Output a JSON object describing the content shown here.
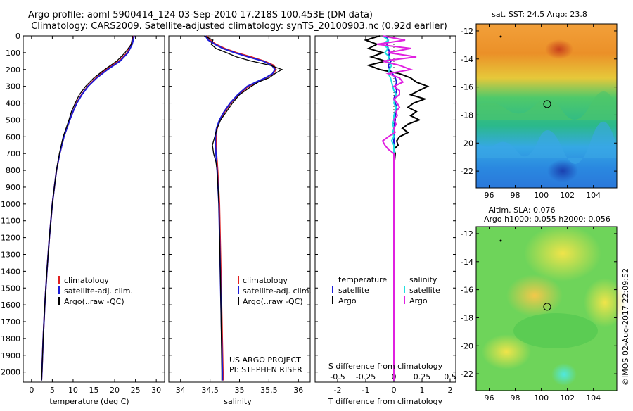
{
  "header": {
    "title_line1": "Argo profile: aoml 5900414_124 03-Sep-2010 17.218S 100.453E (DM data)",
    "title_line2": "Climatology: CARS2009. Satellite-adjusted climatology: synTS_20100903.nc (0.92d earlier)"
  },
  "colors": {
    "climatology": "#e02020",
    "satellite": "#1c1cd8",
    "argo": "#000000",
    "sal_satellite": "#1fe0e0",
    "sal_argo": "#e020e0"
  },
  "depth_ticks": [
    "0",
    "100",
    "200",
    "300",
    "400",
    "500",
    "600",
    "700",
    "800",
    "900",
    "1000",
    "1100",
    "1200",
    "1300",
    "1400",
    "1500",
    "1600",
    "1700",
    "1800",
    "1900",
    "2000"
  ],
  "legend_profiles": {
    "climatology": "climatology",
    "satellite": "satellite-adj. clim.",
    "argo": "Argo(..raw -QC)"
  },
  "chart_data": [
    {
      "type": "line",
      "id": "temperature",
      "xlabel": "temperature (deg C)",
      "xlim": [
        -2,
        32
      ],
      "ylim": [
        2060,
        0
      ],
      "xticks": [
        "0",
        "5",
        "10",
        "15",
        "20",
        "25",
        "30"
      ],
      "depth": [
        0,
        50,
        100,
        150,
        200,
        250,
        300,
        350,
        400,
        450,
        500,
        600,
        700,
        800,
        900,
        1000,
        1200,
        1400,
        1600,
        1800,
        2000,
        2050
      ],
      "series": [
        {
          "name": "climatology",
          "values": [
            24.5,
            24.0,
            23.0,
            21.0,
            18.0,
            15.5,
            13.5,
            12.0,
            10.8,
            10.0,
            9.2,
            7.8,
            6.8,
            6.0,
            5.5,
            5.0,
            4.3,
            3.7,
            3.2,
            2.8,
            2.5,
            2.4
          ]
        },
        {
          "name": "satellite-adj. clim.",
          "values": [
            24.7,
            24.2,
            23.2,
            21.3,
            18.3,
            15.7,
            13.6,
            12.1,
            10.9,
            10.0,
            9.2,
            7.8,
            6.8,
            6.0,
            5.5,
            5.0,
            4.3,
            3.7,
            3.2,
            2.8,
            2.5,
            2.4
          ]
        },
        {
          "name": "Argo(..raw -QC)",
          "values": [
            24.3,
            24.0,
            22.5,
            20.5,
            17.6,
            15.0,
            13.0,
            11.5,
            10.5,
            9.6,
            9.0,
            7.6,
            6.7,
            6.0,
            5.5,
            5.0,
            4.3,
            3.7,
            3.2,
            2.8,
            2.5,
            2.4
          ]
        }
      ]
    },
    {
      "type": "line",
      "id": "salinity",
      "xlabel": "salinity",
      "xlim": [
        33.8,
        36.2
      ],
      "ylim": [
        2060,
        0
      ],
      "xticks": [
        "34",
        "34.5",
        "35",
        "35.5",
        "36"
      ],
      "depth": [
        0,
        25,
        50,
        75,
        100,
        125,
        150,
        175,
        200,
        225,
        250,
        275,
        300,
        350,
        400,
        450,
        500,
        550,
        600,
        650,
        700,
        750,
        800,
        1000,
        1500,
        2000,
        2050
      ],
      "series": [
        {
          "name": "climatology",
          "values": [
            34.45,
            34.5,
            34.6,
            34.75,
            34.95,
            35.2,
            35.42,
            35.58,
            35.62,
            35.57,
            35.45,
            35.3,
            35.15,
            34.98,
            34.85,
            34.75,
            34.67,
            34.62,
            34.6,
            34.6,
            34.61,
            34.62,
            34.63,
            34.66,
            34.69,
            34.72,
            34.72
          ]
        },
        {
          "name": "satellite-adj. clim.",
          "values": [
            34.42,
            34.47,
            34.58,
            34.72,
            34.92,
            35.15,
            35.4,
            35.55,
            35.6,
            35.56,
            35.44,
            35.28,
            35.13,
            34.97,
            34.84,
            34.74,
            34.66,
            34.61,
            34.59,
            34.59,
            34.6,
            34.61,
            34.62,
            34.65,
            34.68,
            34.71,
            34.71
          ]
        },
        {
          "name": "Argo(..raw -QC)",
          "values": [
            34.4,
            34.55,
            34.52,
            34.6,
            34.78,
            34.95,
            35.2,
            35.52,
            35.72,
            35.6,
            35.5,
            35.32,
            35.2,
            35.0,
            34.88,
            34.78,
            34.68,
            34.62,
            34.58,
            34.54,
            34.56,
            34.6,
            34.62,
            34.65,
            34.68,
            34.7,
            34.7
          ]
        }
      ]
    },
    {
      "type": "line",
      "id": "difference",
      "xlabel": "T difference from climatology",
      "xlabel_top": "S difference from climatology",
      "xlim": [
        -2.8,
        2.2
      ],
      "ylim": [
        2060,
        0
      ],
      "xticks_bottom": [
        "-2",
        "-1",
        "0",
        "1",
        "2"
      ],
      "xticks_top": [
        "-0.5",
        "-0.25",
        "0",
        "0.25",
        "0.5"
      ],
      "legend_temperature_title": "temperature",
      "legend_salinity_title": "salinity",
      "legend_entries": {
        "satellite": "satellite",
        "argo": "Argo"
      },
      "footer_line1": "US ARGO PROJECT",
      "footer_line2": "PI: STEPHEN RISER",
      "depth": [
        0,
        25,
        50,
        75,
        100,
        125,
        150,
        175,
        200,
        225,
        250,
        275,
        300,
        325,
        350,
        375,
        400,
        425,
        450,
        475,
        500,
        525,
        550,
        575,
        600,
        625,
        650,
        675,
        700,
        750,
        800,
        1000,
        1500,
        2000,
        2050
      ],
      "series": [
        {
          "name": "T satellite",
          "values": [
            -0.3,
            -0.2,
            -0.25,
            -0.2,
            -0.15,
            -0.2,
            -0.1,
            -0.2,
            -0.15,
            -0.05,
            0.05,
            0.1,
            0.05,
            0.1,
            0.05,
            0.0,
            0.05,
            0.1,
            0.08,
            0.05,
            0.05,
            0.02,
            0.0,
            0.02,
            0.0,
            0.0,
            0.0,
            0.0,
            0.0,
            0.0,
            0.0,
            0.0,
            0.0,
            0.0,
            0.0
          ]
        },
        {
          "name": "T Argo",
          "values": [
            -0.5,
            -1.0,
            -0.6,
            -0.9,
            -0.4,
            -0.8,
            -0.3,
            -0.9,
            -0.5,
            0.2,
            0.6,
            0.8,
            1.2,
            0.9,
            0.6,
            1.1,
            0.7,
            0.5,
            0.8,
            0.6,
            0.9,
            0.5,
            0.3,
            0.5,
            0.2,
            0.1,
            0.15,
            0.0,
            0.05,
            0.02,
            0.0,
            0.0,
            0.0,
            0.0,
            0.0
          ]
        },
        {
          "name": "S satellite",
          "values": [
            -0.1,
            -0.05,
            -0.1,
            -0.05,
            -0.08,
            -0.04,
            -0.06,
            -0.02,
            -0.04,
            -0.05,
            -0.03,
            -0.02,
            -0.01,
            0.0,
            0.02,
            0.01,
            0.0,
            0.02,
            0.01,
            0.0,
            0.0,
            -0.01,
            0.0,
            -0.01,
            0.0,
            -0.02,
            0.0,
            0.0,
            0.0,
            0.0,
            0.0,
            0.0,
            0.0,
            0.0,
            0.0
          ]
        },
        {
          "name": "S Argo",
          "values": [
            -0.1,
            0.1,
            -0.15,
            0.15,
            -0.05,
            0.2,
            -0.1,
            0.05,
            0.15,
            -0.05,
            0.05,
            0.08,
            0.0,
            0.05,
            0.05,
            0.0,
            0.03,
            0.05,
            0.02,
            0.03,
            0.0,
            0.02,
            0.0,
            0.01,
            -0.05,
            -0.1,
            -0.08,
            -0.05,
            0.0,
            0.0,
            0.0,
            0.0,
            0.0,
            0.0,
            0.0
          ]
        }
      ]
    },
    {
      "type": "heatmap",
      "id": "sst_map",
      "title": "sat. SST: 24.5  Argo: 23.8",
      "xticks": [
        "96",
        "98",
        "100",
        "102",
        "104"
      ],
      "yticks": [
        "-12",
        "-14",
        "-16",
        "-18",
        "-20",
        "-22"
      ],
      "xlim": [
        95,
        105.8
      ],
      "ylim": [
        -23.2,
        -11.5
      ],
      "marker": {
        "lon": 100.453,
        "lat": -17.218
      }
    },
    {
      "type": "heatmap",
      "id": "sla_map",
      "title": "Altim. SLA: 0.076",
      "subtitle": "Argo h1000: 0.055 h2000: 0.056",
      "side_label": "©IMOS 02-Aug-2017 22:09:52",
      "xticks": [
        "96",
        "98",
        "100",
        "102",
        "104"
      ],
      "yticks": [
        "-12",
        "-14",
        "-16",
        "-18",
        "-20",
        "-22"
      ],
      "xlim": [
        95,
        105.8
      ],
      "ylim": [
        -23.2,
        -11.5
      ],
      "marker": {
        "lon": 100.453,
        "lat": -17.218
      }
    }
  ]
}
